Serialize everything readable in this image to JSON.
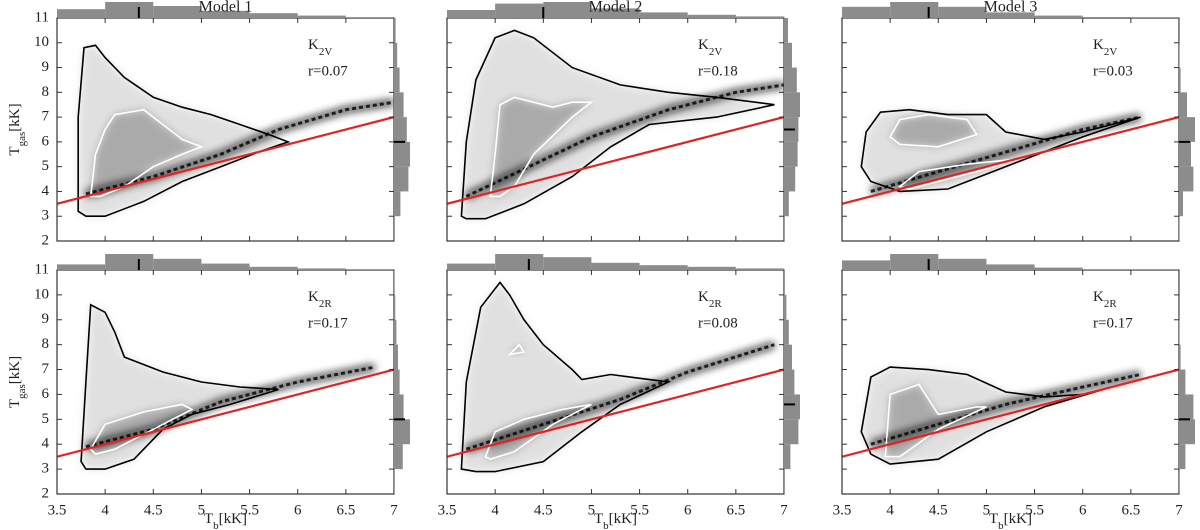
{
  "chart_data": [
    {
      "type": "hist2d",
      "title": "Model 1",
      "label": {
        "text": "K",
        "sub": "2V"
      },
      "stat": "r=0.07",
      "ylabel": [
        "T",
        "gas",
        "[kK]"
      ],
      "show_xtick_labels": false,
      "show_ytick_labels": true,
      "xlim": [
        3.5,
        7.0
      ],
      "ylim": [
        2,
        11
      ],
      "xticks": [
        3.5,
        4.0,
        4.5,
        5.0,
        5.5,
        6.0,
        6.5,
        7.0
      ],
      "yticks": [
        2,
        3,
        4,
        5,
        6,
        7,
        8,
        9,
        10,
        11
      ],
      "line": {
        "color": "#e02424",
        "x": [
          3.5,
          7.0
        ],
        "y": [
          3.5,
          7.0
        ]
      },
      "ridge": {
        "x": [
          3.8,
          4.5,
          5.2,
          5.8,
          6.5,
          7.0
        ],
        "y": [
          3.9,
          4.6,
          5.5,
          6.5,
          7.3,
          7.6
        ]
      },
      "contours": [
        {
          "color": "#000000",
          "x": [
            3.72,
            3.72,
            3.78,
            3.9,
            4.0,
            4.2,
            4.5,
            4.8,
            5.1,
            5.4,
            5.7,
            5.9,
            5.6,
            5.2,
            4.8,
            4.4,
            4.0,
            3.8
          ],
          "y": [
            3.2,
            7.0,
            9.8,
            9.9,
            9.4,
            8.6,
            7.8,
            7.4,
            7.1,
            6.7,
            6.3,
            6.0,
            5.6,
            5.0,
            4.4,
            3.6,
            3.0,
            3.0
          ]
        },
        {
          "color": "#ffffff",
          "x": [
            3.85,
            3.9,
            4.0,
            4.1,
            4.4,
            4.6,
            4.8,
            5.0,
            4.8,
            4.5,
            4.2,
            3.95
          ],
          "y": [
            3.8,
            5.5,
            6.5,
            7.1,
            7.3,
            6.7,
            6.1,
            5.8,
            5.5,
            5.0,
            4.2,
            3.8
          ]
        }
      ],
      "x_hist": {
        "bins": [
          3.5,
          4.0,
          4.5,
          5.0,
          5.5,
          6.0,
          6.5,
          7.0
        ],
        "counts": [
          0.55,
          1.0,
          0.75,
          0.45,
          0.3,
          0.15,
          0.05
        ],
        "marker": 4.35
      },
      "y_hist": {
        "bins": [
          2,
          3,
          4,
          5,
          6,
          7,
          8,
          9,
          10,
          11
        ],
        "counts": [
          0.05,
          0.4,
          0.9,
          1.0,
          0.8,
          0.6,
          0.35,
          0.2,
          0.1
        ],
        "marker": 6.0
      }
    },
    {
      "type": "hist2d",
      "title": "Model 2",
      "label": {
        "text": "K",
        "sub": "2V"
      },
      "stat": "r=0.18",
      "show_xtick_labels": false,
      "show_ytick_labels": false,
      "xlim": [
        3.5,
        7.0
      ],
      "ylim": [
        2,
        11
      ],
      "xticks": [
        3.5,
        4.0,
        4.5,
        5.0,
        5.5,
        6.0,
        6.5,
        7.0
      ],
      "yticks": [
        2,
        3,
        4,
        5,
        6,
        7,
        8,
        9,
        10,
        11
      ],
      "line": {
        "color": "#e02424",
        "x": [
          3.5,
          7.0
        ],
        "y": [
          3.5,
          7.0
        ]
      },
      "ridge": {
        "x": [
          3.7,
          4.3,
          5.0,
          5.8,
          6.5,
          7.0
        ],
        "y": [
          3.8,
          4.9,
          6.2,
          7.3,
          8.0,
          8.3
        ]
      },
      "contours": [
        {
          "color": "#000000",
          "x": [
            3.65,
            3.7,
            3.8,
            4.0,
            4.2,
            4.4,
            4.8,
            5.3,
            5.8,
            6.3,
            6.9,
            6.3,
            5.6,
            5.2,
            4.8,
            4.3,
            3.9,
            3.7
          ],
          "y": [
            3.0,
            6.0,
            8.5,
            10.2,
            10.5,
            10.2,
            9.0,
            8.3,
            8.0,
            7.8,
            7.5,
            7.0,
            6.7,
            5.8,
            4.6,
            3.5,
            2.9,
            2.9
          ]
        },
        {
          "color": "#ffffff",
          "x": [
            3.95,
            4.0,
            4.05,
            4.2,
            4.6,
            4.8,
            5.0,
            4.8,
            4.4,
            4.2,
            4.05
          ],
          "y": [
            3.8,
            5.5,
            7.5,
            7.8,
            7.4,
            7.6,
            7.6,
            7.0,
            5.5,
            4.2,
            3.8
          ]
        }
      ],
      "x_hist": {
        "bins": [
          3.5,
          4.0,
          4.5,
          5.0,
          5.5,
          6.0,
          6.5,
          7.0
        ],
        "counts": [
          0.5,
          0.9,
          1.0,
          0.6,
          0.35,
          0.2,
          0.1
        ],
        "marker": 4.5
      },
      "y_hist": {
        "bins": [
          2,
          3,
          4,
          5,
          6,
          7,
          8,
          9,
          10,
          11
        ],
        "counts": [
          0.02,
          0.3,
          0.7,
          0.85,
          0.9,
          1.0,
          0.8,
          0.5,
          0.25
        ],
        "marker": 6.5
      }
    },
    {
      "type": "hist2d",
      "title": "Model 3",
      "label": {
        "text": "K",
        "sub": "2V"
      },
      "stat": "r=0.03",
      "show_xtick_labels": false,
      "show_ytick_labels": false,
      "xlim": [
        3.5,
        7.0
      ],
      "ylim": [
        2,
        11
      ],
      "xticks": [
        3.5,
        4.0,
        4.5,
        5.0,
        5.5,
        6.0,
        6.5,
        7.0
      ],
      "yticks": [
        2,
        3,
        4,
        5,
        6,
        7,
        8,
        9,
        10,
        11
      ],
      "line": {
        "color": "#e02424",
        "x": [
          3.5,
          7.0
        ],
        "y": [
          3.5,
          7.0
        ]
      },
      "ridge": {
        "x": [
          3.8,
          4.5,
          5.3,
          6.0,
          6.6
        ],
        "y": [
          4.0,
          4.8,
          5.7,
          6.5,
          7.0
        ]
      },
      "contours": [
        {
          "color": "#000000",
          "x": [
            3.7,
            3.75,
            3.9,
            4.2,
            4.6,
            5.0,
            5.2,
            5.6,
            6.0,
            6.6,
            6.0,
            5.4,
            5.0,
            4.6,
            4.1,
            3.8
          ],
          "y": [
            5.0,
            6.4,
            7.2,
            7.3,
            7.1,
            7.1,
            6.4,
            6.1,
            6.4,
            7.0,
            6.2,
            5.3,
            4.7,
            4.1,
            4.0,
            4.4
          ]
        },
        {
          "color": "#ffffff",
          "x": [
            4.0,
            4.1,
            4.4,
            4.8,
            4.9,
            4.5,
            4.1
          ],
          "y": [
            6.2,
            6.9,
            7.1,
            6.9,
            6.3,
            5.8,
            5.9
          ]
        },
        {
          "color": "#ffffff",
          "x": [
            4.1,
            4.3,
            4.8,
            5.3,
            5.0,
            4.5,
            4.2
          ],
          "y": [
            4.2,
            4.8,
            5.1,
            5.3,
            4.9,
            4.4,
            4.1
          ]
        }
      ],
      "x_hist": {
        "bins": [
          3.5,
          4.0,
          4.5,
          5.0,
          5.5,
          6.0,
          6.5,
          7.0
        ],
        "counts": [
          0.7,
          1.0,
          0.7,
          0.35,
          0.15,
          0.06,
          0.02
        ],
        "marker": 4.4
      },
      "y_hist": {
        "bins": [
          2,
          3,
          4,
          5,
          6,
          7,
          8,
          9,
          10,
          11
        ],
        "counts": [
          0.03,
          0.25,
          0.9,
          0.75,
          1.0,
          0.5,
          0.1,
          0.03,
          0.01
        ],
        "marker": 6.0
      }
    },
    {
      "type": "hist2d",
      "label": {
        "text": "K",
        "sub": "2R"
      },
      "stat": "r=0.17",
      "ylabel": [
        "T",
        "gas",
        "[kK]"
      ],
      "xlabel": [
        "T",
        "b",
        "[kK]"
      ],
      "show_xtick_labels": true,
      "show_ytick_labels": true,
      "xlim": [
        3.5,
        7.0
      ],
      "ylim": [
        2,
        11
      ],
      "xticks": [
        3.5,
        4.0,
        4.5,
        5.0,
        5.5,
        6.0,
        6.5,
        7.0
      ],
      "yticks": [
        2,
        3,
        4,
        5,
        6,
        7,
        8,
        9,
        10,
        11
      ],
      "line": {
        "color": "#e02424",
        "x": [
          3.5,
          7.0
        ],
        "y": [
          3.5,
          7.0
        ]
      },
      "ridge": {
        "x": [
          3.8,
          4.5,
          5.2,
          6.0,
          6.8
        ],
        "y": [
          3.9,
          4.6,
          5.7,
          6.5,
          7.1
        ]
      },
      "contours": [
        {
          "color": "#000000",
          "x": [
            3.75,
            3.8,
            3.85,
            4.0,
            4.1,
            4.2,
            4.6,
            5.0,
            5.4,
            5.8,
            5.3,
            4.9,
            4.6,
            4.3,
            4.0,
            3.8
          ],
          "y": [
            3.3,
            6.5,
            9.6,
            9.3,
            8.5,
            7.5,
            6.9,
            6.5,
            6.3,
            6.2,
            5.6,
            5.2,
            4.6,
            3.4,
            3.0,
            3.0
          ]
        },
        {
          "color": "#ffffff",
          "x": [
            3.85,
            4.0,
            4.4,
            4.8,
            4.9,
            4.5,
            4.1,
            3.9
          ],
          "y": [
            3.8,
            4.8,
            5.3,
            5.6,
            5.4,
            4.6,
            3.8,
            3.6
          ]
        }
      ],
      "x_hist": {
        "bins": [
          3.5,
          4.0,
          4.5,
          5.0,
          5.5,
          6.0,
          6.5,
          7.0
        ],
        "counts": [
          0.35,
          1.0,
          0.7,
          0.4,
          0.2,
          0.1,
          0.05
        ],
        "marker": 4.35
      },
      "y_hist": {
        "bins": [
          2,
          3,
          4,
          5,
          6,
          7,
          8,
          9,
          10,
          11
        ],
        "counts": [
          0.05,
          0.55,
          1.0,
          0.6,
          0.35,
          0.25,
          0.15,
          0.08,
          0.03
        ],
        "marker": 5.0
      }
    },
    {
      "type": "hist2d",
      "label": {
        "text": "K",
        "sub": "2R"
      },
      "stat": "r=0.08",
      "xlabel": [
        "T",
        "b",
        "[kK]"
      ],
      "show_xtick_labels": true,
      "show_ytick_labels": false,
      "xlim": [
        3.5,
        7.0
      ],
      "ylim": [
        2,
        11
      ],
      "xticks": [
        3.5,
        4.0,
        4.5,
        5.0,
        5.5,
        6.0,
        6.5,
        7.0
      ],
      "yticks": [
        2,
        3,
        4,
        5,
        6,
        7,
        8,
        9,
        10,
        11
      ],
      "line": {
        "color": "#e02424",
        "x": [
          3.5,
          7.0
        ],
        "y": [
          3.5,
          7.0
        ]
      },
      "ridge": {
        "x": [
          3.7,
          4.5,
          5.3,
          6.0,
          6.9
        ],
        "y": [
          3.8,
          4.8,
          5.8,
          6.9,
          8.0
        ]
      },
      "contours": [
        {
          "color": "#000000",
          "x": [
            3.65,
            3.7,
            3.85,
            4.05,
            4.15,
            4.3,
            4.5,
            4.8,
            4.9,
            5.2,
            5.8,
            5.3,
            4.9,
            4.5,
            4.0,
            3.8
          ],
          "y": [
            3.0,
            6.5,
            9.5,
            10.5,
            10.0,
            9.0,
            8.0,
            7.0,
            6.6,
            6.8,
            6.5,
            5.6,
            4.5,
            3.3,
            2.9,
            2.9
          ]
        },
        {
          "color": "#ffffff",
          "x": [
            3.9,
            4.0,
            4.3,
            4.7,
            5.0,
            4.6,
            4.2,
            3.95
          ],
          "y": [
            3.5,
            4.5,
            5.0,
            5.4,
            5.6,
            4.8,
            3.7,
            3.4
          ]
        },
        {
          "color": "#ffffff",
          "x": [
            4.15,
            4.25,
            4.3,
            4.15
          ],
          "y": [
            7.6,
            8.0,
            7.7,
            7.6
          ]
        }
      ],
      "x_hist": {
        "bins": [
          3.5,
          4.0,
          4.5,
          5.0,
          5.5,
          6.0,
          6.5,
          7.0
        ],
        "counts": [
          0.4,
          1.0,
          0.8,
          0.45,
          0.3,
          0.2,
          0.1
        ],
        "marker": 4.35
      },
      "y_hist": {
        "bins": [
          2,
          3,
          4,
          5,
          6,
          7,
          8,
          9,
          10,
          11
        ],
        "counts": [
          0.05,
          0.4,
          0.9,
          1.0,
          0.65,
          0.5,
          0.3,
          0.15,
          0.05
        ],
        "marker": 5.6
      }
    },
    {
      "type": "hist2d",
      "label": {
        "text": "K",
        "sub": "2R"
      },
      "stat": "r=0.17",
      "xlabel": [
        "T",
        "b",
        "[kK]"
      ],
      "show_xtick_labels": true,
      "show_ytick_labels": false,
      "xlim": [
        3.5,
        7.0
      ],
      "ylim": [
        2,
        11
      ],
      "xticks": [
        3.5,
        4.0,
        4.5,
        5.0,
        5.5,
        6.0,
        6.5,
        7.0
      ],
      "yticks": [
        2,
        3,
        4,
        5,
        6,
        7,
        8,
        9,
        10,
        11
      ],
      "line": {
        "color": "#e02424",
        "x": [
          3.5,
          7.0
        ],
        "y": [
          3.5,
          7.0
        ]
      },
      "ridge": {
        "x": [
          3.8,
          4.5,
          5.2,
          6.0,
          6.6
        ],
        "y": [
          4.0,
          4.8,
          5.6,
          6.3,
          6.8
        ]
      },
      "contours": [
        {
          "color": "#000000",
          "x": [
            3.7,
            3.8,
            4.0,
            4.4,
            4.8,
            5.2,
            5.6,
            6.0,
            6.3,
            5.6,
            5.0,
            4.5,
            4.0,
            3.8
          ],
          "y": [
            4.5,
            6.7,
            7.1,
            7.0,
            6.8,
            6.1,
            5.9,
            6.0,
            6.3,
            5.5,
            4.5,
            3.4,
            3.2,
            3.6
          ]
        },
        {
          "color": "#ffffff",
          "x": [
            3.95,
            4.0,
            4.3,
            4.5,
            4.9,
            5.0,
            4.5,
            4.1,
            3.95
          ],
          "y": [
            3.5,
            6.0,
            6.4,
            5.2,
            5.5,
            5.5,
            4.6,
            3.5,
            3.5
          ]
        }
      ],
      "x_hist": {
        "bins": [
          3.5,
          4.0,
          4.5,
          5.0,
          5.5,
          6.0,
          6.5,
          7.0
        ],
        "counts": [
          0.6,
          1.0,
          0.7,
          0.35,
          0.15,
          0.05,
          0.02
        ],
        "marker": 4.4
      },
      "y_hist": {
        "bins": [
          2,
          3,
          4,
          5,
          6,
          7,
          8,
          9,
          10,
          11
        ],
        "counts": [
          0.02,
          0.4,
          1.0,
          0.9,
          0.4,
          0.1,
          0.03,
          0.01,
          0.01
        ],
        "marker": 5.0
      }
    }
  ]
}
